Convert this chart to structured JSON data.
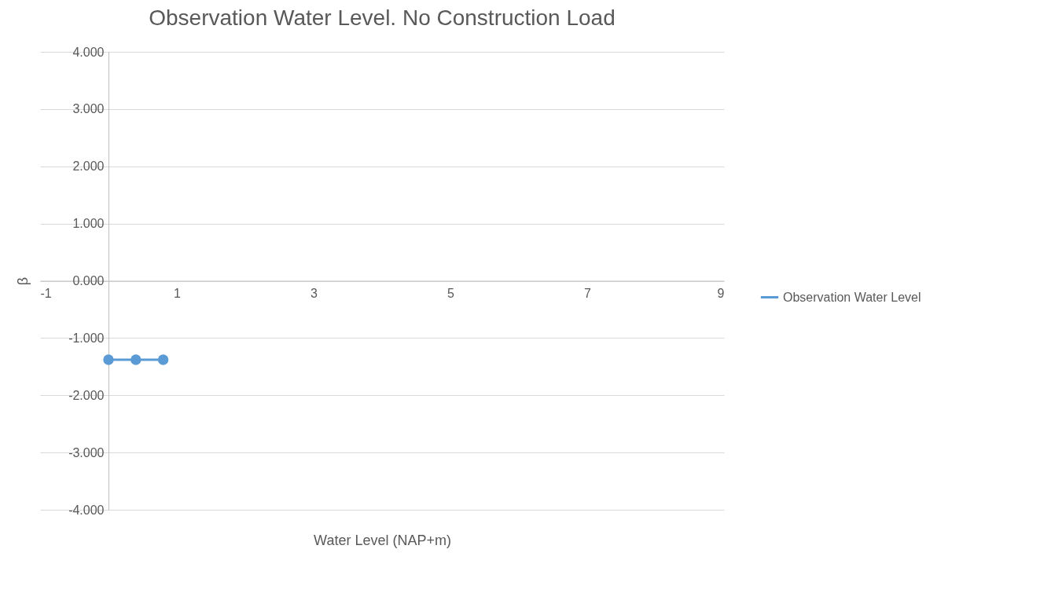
{
  "chart_data": {
    "type": "line",
    "title": "Observation Water Level. No Construction Load",
    "xlabel": "Water Level (NAP+m)",
    "ylabel": "β",
    "series": [
      {
        "name": "Observation Water Level",
        "color": "#5b9bd5",
        "x": [
          0,
          0.4,
          0.8
        ],
        "values": [
          -1.38,
          -1.38,
          -1.38
        ]
      }
    ],
    "xlim": [
      -1,
      9
    ],
    "xticks": [
      -1,
      1,
      3,
      5,
      7,
      9
    ],
    "ylim": [
      -4,
      4
    ],
    "yticks": [
      {
        "value": -4,
        "label": "-4.000"
      },
      {
        "value": -3,
        "label": "-3.000"
      },
      {
        "value": -2,
        "label": "-2.000"
      },
      {
        "value": -1,
        "label": "-1.000"
      },
      {
        "value": 0,
        "label": "0.000"
      },
      {
        "value": 1,
        "label": "1.000"
      },
      {
        "value": 2,
        "label": "2.000"
      },
      {
        "value": 3,
        "label": "3.000"
      },
      {
        "value": 4,
        "label": "4.000"
      }
    ],
    "grid": "y",
    "legend": "right",
    "marker": "circle",
    "line_style": "solid"
  }
}
